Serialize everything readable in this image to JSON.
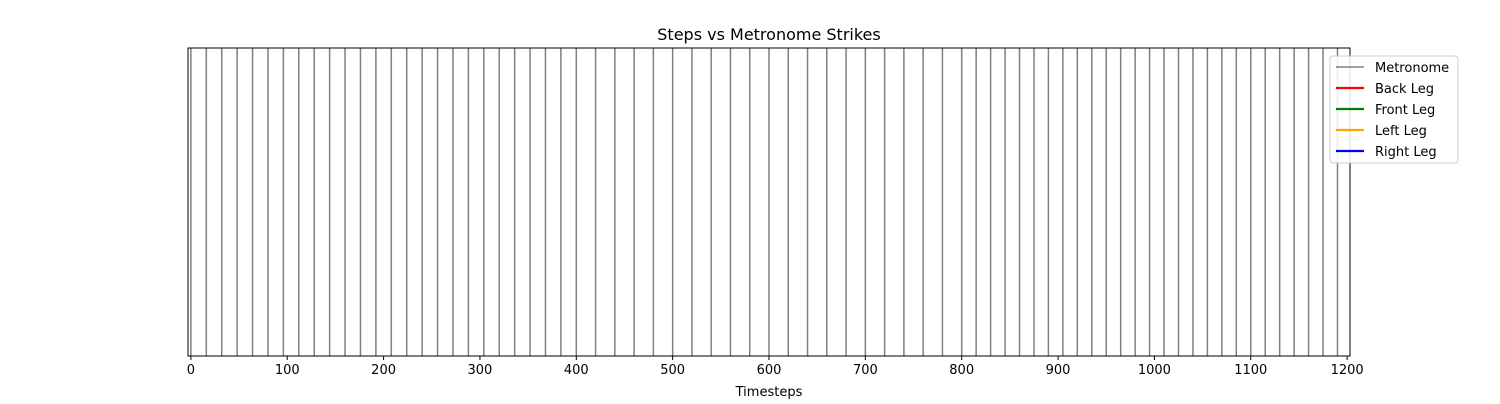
{
  "chart_data": {
    "type": "line",
    "title": "Steps vs Metronome Strikes",
    "xlabel": "Timesteps",
    "ylabel": "",
    "xlim": [
      -3,
      1203
    ],
    "x_ticks": [
      0,
      100,
      200,
      300,
      400,
      500,
      600,
      700,
      800,
      900,
      1000,
      1100,
      1200
    ],
    "grid": false,
    "legend_position": "top-right",
    "series": [
      {
        "name": "Metronome",
        "color": "#808080",
        "kind": "vertical-lines",
        "x": [
          0,
          16,
          32,
          48,
          64,
          80,
          96,
          112,
          128,
          144,
          160,
          176,
          192,
          208,
          224,
          240,
          256,
          272,
          288,
          304,
          320,
          336,
          352,
          368,
          384,
          400,
          420,
          440,
          460,
          480,
          500,
          520,
          540,
          560,
          580,
          600,
          620,
          640,
          660,
          680,
          700,
          720,
          740,
          760,
          780,
          800,
          815,
          830,
          845,
          860,
          875,
          890,
          905,
          920,
          935,
          950,
          965,
          980,
          995,
          1010,
          1025,
          1040,
          1055,
          1070,
          1085,
          1100,
          1115,
          1130,
          1145,
          1160,
          1175,
          1190
        ]
      },
      {
        "name": "Back Leg",
        "color": "#ff0000",
        "kind": "steps",
        "x": []
      },
      {
        "name": "Front Leg",
        "color": "#008000",
        "kind": "steps",
        "x": []
      },
      {
        "name": "Left Leg",
        "color": "#ffa500",
        "kind": "steps",
        "x": []
      },
      {
        "name": "Right Leg",
        "color": "#0000ff",
        "kind": "steps",
        "x": []
      }
    ]
  }
}
